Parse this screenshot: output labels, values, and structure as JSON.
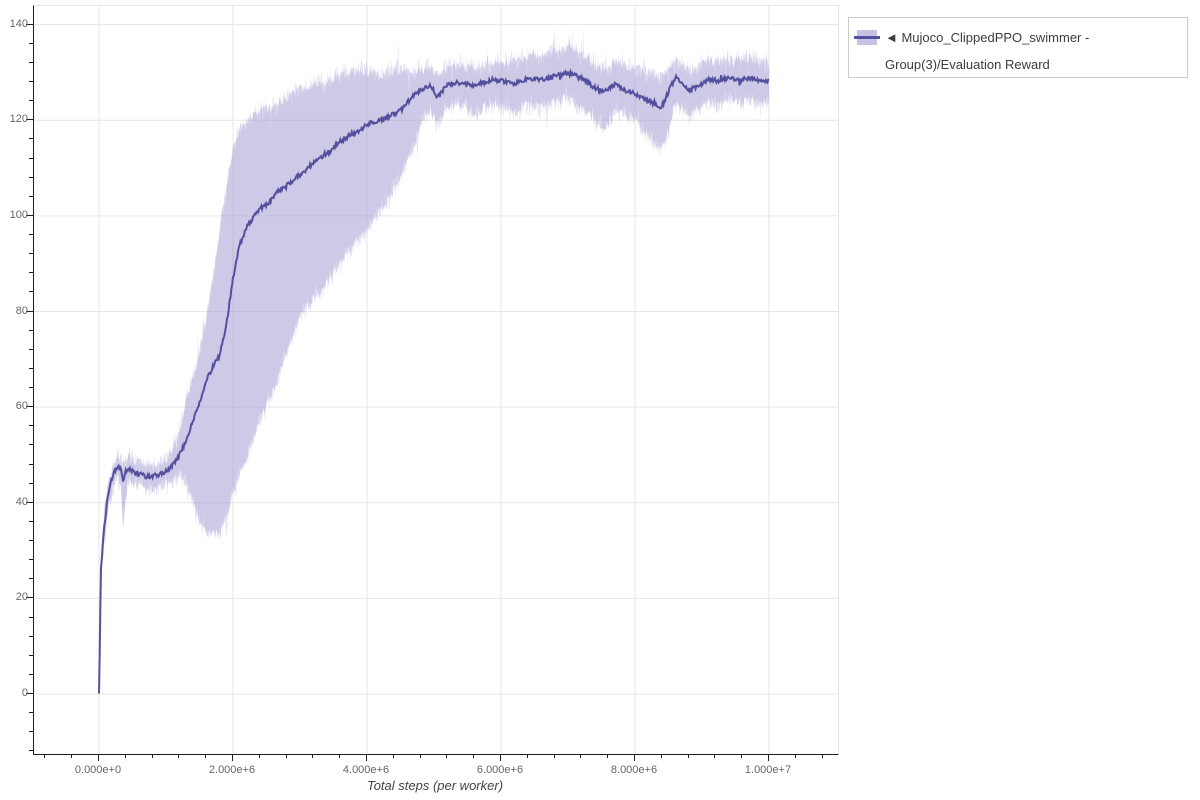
{
  "figure": {
    "x_axis_title": "Total steps (per worker)",
    "legend": {
      "label": "◄ Mujoco_ClippedPPO_swimmer - Group(3)/Evaluation Reward"
    }
  },
  "chart_data": {
    "type": "line",
    "title": "",
    "xlabel": "Total steps (per worker)",
    "ylabel": "",
    "grid": true,
    "legend_position": "outside-top-right",
    "x_range": [
      -970000,
      11030000
    ],
    "y_range": [
      -12.55,
      143.9
    ],
    "x_ticks": {
      "values": [
        0,
        2000000,
        4000000,
        6000000,
        8000000,
        10000000
      ],
      "labels": [
        "0.000e+0",
        "2.000e+6",
        "4.000e+6",
        "6.000e+6",
        "8.000e+6",
        "1.000e+7"
      ],
      "minor_step": 400000
    },
    "y_ticks": {
      "values": [
        0,
        20,
        40,
        60,
        80,
        100,
        120,
        140
      ],
      "labels": [
        "0",
        "20",
        "40",
        "60",
        "80",
        "100",
        "120",
        "140"
      ],
      "minor_step": 4
    },
    "colors": {
      "line": "#55509e",
      "band": "#aaa3d4",
      "grid": "#e6e6e6",
      "axis": "#1f1f1f",
      "tick_label": "#666666"
    },
    "series": [
      {
        "name": "◄ Mujoco_ClippedPPO_swimmer - Group(3)/Evaluation Reward",
        "x_e6": [
          0.0,
          0.03,
          0.05,
          0.08,
          0.12,
          0.17,
          0.22,
          0.28,
          0.33,
          0.36,
          0.4,
          0.45,
          0.5,
          0.6,
          0.7,
          0.8,
          0.9,
          1.0,
          1.1,
          1.2,
          1.3,
          1.4,
          1.5,
          1.6,
          1.7,
          1.8,
          1.9,
          1.95,
          2.0,
          2.1,
          2.2,
          2.3,
          2.4,
          2.55,
          2.7,
          2.85,
          3.0,
          3.15,
          3.3,
          3.45,
          3.6,
          3.75,
          3.9,
          4.05,
          4.2,
          4.35,
          4.5,
          4.65,
          4.8,
          4.95,
          5.05,
          5.2,
          5.4,
          5.6,
          5.8,
          6.0,
          6.2,
          6.4,
          6.6,
          6.8,
          7.0,
          7.1,
          7.25,
          7.4,
          7.55,
          7.7,
          7.85,
          8.0,
          8.15,
          8.3,
          8.4,
          8.5,
          8.6,
          8.7,
          8.8,
          8.95,
          9.1,
          9.25,
          9.4,
          9.55,
          9.7,
          9.85,
          10.0
        ],
        "mean": [
          0.5,
          26,
          30,
          35,
          40,
          44,
          46,
          47.5,
          47,
          44.5,
          46.5,
          47,
          46.5,
          46,
          45.5,
          45.5,
          46,
          46.5,
          48,
          50,
          53,
          57,
          61,
          65.5,
          68.5,
          71,
          77,
          82,
          87,
          94,
          97.5,
          99.5,
          101.5,
          103,
          105.5,
          107,
          108.5,
          110.5,
          112,
          113.5,
          115.5,
          117,
          118,
          119.5,
          120,
          121,
          122,
          124.5,
          126.5,
          127.3,
          124.8,
          127.5,
          127.8,
          127.3,
          128.2,
          128.3,
          127.6,
          128.8,
          128.4,
          129.3,
          129.8,
          129.4,
          128.4,
          126.8,
          126.2,
          127.6,
          126.3,
          125.6,
          124.5,
          123.2,
          122.8,
          126,
          129,
          128,
          126.3,
          127.2,
          128.6,
          128.2,
          129,
          128.3,
          128.8,
          128.4,
          128.3
        ],
        "lower": [
          0.5,
          24,
          27,
          32,
          37,
          41,
          43.5,
          45,
          43,
          34,
          42,
          44.5,
          44,
          43.5,
          43,
          43,
          43.5,
          44,
          45,
          45.5,
          44,
          40,
          36,
          34,
          33.5,
          34,
          37,
          39.5,
          42,
          46,
          49,
          53,
          57,
          62,
          67,
          73,
          79,
          82,
          84,
          87,
          90,
          93,
          95.5,
          98,
          101,
          104,
          108,
          113,
          119,
          122,
          119.5,
          122.5,
          123,
          121,
          123.5,
          123,
          121.5,
          123.5,
          122.5,
          124,
          124.5,
          123.5,
          122,
          120,
          118.5,
          122,
          121,
          120.5,
          117.5,
          114.5,
          114,
          118,
          123.5,
          123,
          121,
          122.5,
          124,
          123,
          124.5,
          123.5,
          124,
          123.5,
          124
        ],
        "upper": [
          0.5,
          28,
          33,
          38,
          43,
          46.5,
          48.5,
          50,
          49.5,
          48,
          49,
          49.5,
          49,
          48.5,
          48,
          47.5,
          48,
          49,
          51,
          55,
          61,
          66,
          72,
          79,
          87,
          97,
          106,
          110,
          114,
          118,
          120,
          121,
          122,
          122.5,
          124,
          125,
          126.5,
          127,
          127.5,
          128.5,
          129.5,
          130,
          130.5,
          130,
          129.5,
          130,
          130.5,
          130.5,
          130.5,
          131,
          129.5,
          131,
          131.5,
          131,
          132,
          132.5,
          132.5,
          133.5,
          133.5,
          134.5,
          135.5,
          134.5,
          133,
          131.5,
          131,
          132,
          131.5,
          131,
          130.5,
          129.5,
          129,
          130.5,
          132.5,
          132,
          130.5,
          131,
          132.5,
          132.5,
          133,
          132.5,
          133,
          132.5,
          132
        ]
      }
    ]
  }
}
